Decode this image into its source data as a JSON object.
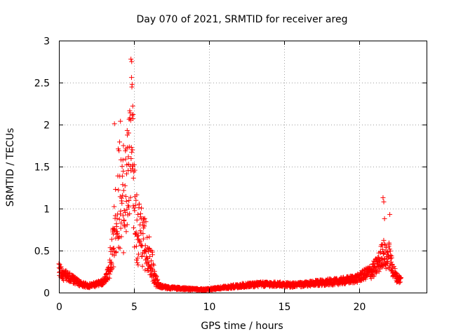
{
  "chart_data": {
    "type": "scatter",
    "title": "Day 070 of 2021, SRMTID for receiver areg",
    "xlabel": "GPS time / hours",
    "ylabel": "SRMTID / TECUs",
    "xlim": [
      0,
      24.5
    ],
    "ylim": [
      0,
      3
    ],
    "grid": true,
    "marker": "+",
    "color": "#ff0000",
    "x_ticks": [
      0,
      5,
      10,
      15,
      20
    ],
    "x_tick_labels": [
      "0",
      "5",
      "10",
      "15",
      "20"
    ],
    "y_ticks": [
      0,
      0.5,
      1,
      1.5,
      2,
      2.5,
      3
    ],
    "y_tick_labels": [
      "0",
      "0.5",
      "1",
      "1.5",
      "2",
      "2.5",
      "3"
    ],
    "series": [
      {
        "name": "areg",
        "profile_x": [
          0,
          0.1,
          0.3,
          0.6,
          1.0,
          1.5,
          2.0,
          2.5,
          2.9,
          3.2,
          3.5,
          3.7,
          4.0,
          4.3,
          4.6,
          4.85,
          5.0,
          5.2,
          5.5,
          5.8,
          6.1,
          6.4,
          6.7,
          7.2,
          8,
          9,
          9.7,
          10.5,
          11.5,
          12.5,
          13.5,
          14.5,
          15.5,
          16.5,
          17.5,
          18.5,
          19.3,
          19.9,
          20.4,
          20.8,
          21.1,
          21.4,
          21.6,
          21.8,
          22.0,
          22.2,
          22.5,
          22.8
        ],
        "profile_y": [
          0.3,
          0.25,
          0.2,
          0.2,
          0.15,
          0.1,
          0.08,
          0.1,
          0.12,
          0.2,
          0.4,
          0.7,
          1.2,
          1.05,
          1.3,
          1.7,
          1.1,
          0.75,
          0.65,
          0.55,
          0.45,
          0.15,
          0.08,
          0.06,
          0.05,
          0.04,
          0.035,
          0.05,
          0.07,
          0.09,
          0.1,
          0.1,
          0.09,
          0.1,
          0.12,
          0.13,
          0.15,
          0.17,
          0.22,
          0.25,
          0.3,
          0.38,
          0.5,
          0.4,
          0.45,
          0.3,
          0.18,
          0.15
        ],
        "peaks": [
          {
            "x": 4.8,
            "y": 2.78
          },
          {
            "x": 4.85,
            "y": 2.75
          },
          {
            "x": 4.88,
            "y": 2.48
          },
          {
            "x": 4.92,
            "y": 2.22
          },
          {
            "x": 4.95,
            "y": 2.12
          },
          {
            "x": 3.7,
            "y": 2.01
          },
          {
            "x": 4.1,
            "y": 2.04
          },
          {
            "x": 4.55,
            "y": 1.93
          },
          {
            "x": 4.65,
            "y": 1.9
          },
          {
            "x": 4.3,
            "y": 1.75
          },
          {
            "x": 21.6,
            "y": 1.13
          },
          {
            "x": 21.65,
            "y": 1.08
          },
          {
            "x": 22.05,
            "y": 0.93
          },
          {
            "x": 21.7,
            "y": 0.88
          }
        ]
      }
    ]
  }
}
